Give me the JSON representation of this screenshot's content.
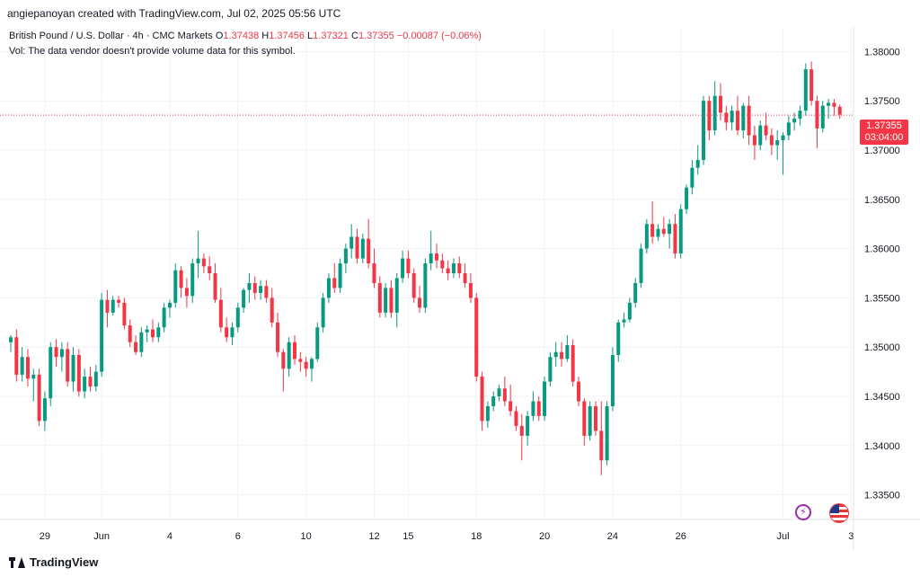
{
  "header": {
    "credit": "angiepanoyan created with TradingView.com, Jul 02, 2025 05:56 UTC",
    "symbol": "British Pound / U.S. Dollar · 4h · CMC Markets",
    "o_label": "O",
    "o_val": "1.37438",
    "h_label": "H",
    "h_val": "1.37456",
    "l_label": "L",
    "l_val": "1.37321",
    "c_label": "C",
    "c_val": "1.37355",
    "change": "−0.00087 (−0.06%)",
    "vol_note": "Vol: The data vendor doesn't provide volume data for this symbol."
  },
  "price_tag": {
    "price": "1.37355",
    "countdown": "03:04:00"
  },
  "footer": {
    "logo_text": "TradingView"
  },
  "icons": {
    "events": "lightning-icon",
    "flag": "us-flag-icon"
  },
  "colors": {
    "up": "#089981",
    "down": "#f23645",
    "grid": "#f0f3fa",
    "text": "#131722"
  },
  "chart_data": {
    "type": "candlestick",
    "ylim": [
      1.3325,
      1.3825
    ],
    "y_ticks": [
      "1.38000",
      "1.37500",
      "1.37000",
      "1.36500",
      "1.36000",
      "1.35500",
      "1.35000",
      "1.34500",
      "1.34000",
      "1.33500"
    ],
    "y_tick_values": [
      1.38,
      1.375,
      1.37,
      1.365,
      1.36,
      1.355,
      1.35,
      1.345,
      1.34,
      1.335
    ],
    "x_ticks": [
      {
        "label": "29",
        "i": 6
      },
      {
        "label": "Jun",
        "i": 16
      },
      {
        "label": "4",
        "i": 28
      },
      {
        "label": "6",
        "i": 40
      },
      {
        "label": "10",
        "i": 52
      },
      {
        "label": "12",
        "i": 64
      },
      {
        "label": "15",
        "i": 70
      },
      {
        "label": "18",
        "i": 82
      },
      {
        "label": "20",
        "i": 94
      },
      {
        "label": "24",
        "i": 106
      },
      {
        "label": "26",
        "i": 118
      },
      {
        "label": "Jul",
        "i": 136
      },
      {
        "label": "3",
        "i": 148
      }
    ],
    "last_price": 1.37355,
    "candles": [
      [
        1.3505,
        1.3512,
        1.3495,
        1.351
      ],
      [
        1.351,
        1.3518,
        1.3465,
        1.3472
      ],
      [
        1.3472,
        1.35,
        1.3465,
        1.349
      ],
      [
        1.349,
        1.3498,
        1.346,
        1.3468
      ],
      [
        1.3468,
        1.3478,
        1.3445,
        1.3472
      ],
      [
        1.3472,
        1.3478,
        1.342,
        1.3425
      ],
      [
        1.3425,
        1.3455,
        1.3415,
        1.3448
      ],
      [
        1.3448,
        1.3505,
        1.344,
        1.35
      ],
      [
        1.35,
        1.3508,
        1.348,
        1.349
      ],
      [
        1.349,
        1.3505,
        1.3475,
        1.3498
      ],
      [
        1.3498,
        1.3505,
        1.346,
        1.3465
      ],
      [
        1.3465,
        1.35,
        1.3455,
        1.3492
      ],
      [
        1.3492,
        1.3498,
        1.345,
        1.3455
      ],
      [
        1.3455,
        1.3478,
        1.3448,
        1.347
      ],
      [
        1.347,
        1.348,
        1.3455,
        1.346
      ],
      [
        1.346,
        1.3482,
        1.3455,
        1.3475
      ],
      [
        1.3475,
        1.3555,
        1.347,
        1.3548
      ],
      [
        1.3548,
        1.3558,
        1.352,
        1.3535
      ],
      [
        1.3535,
        1.3552,
        1.3532,
        1.3548
      ],
      [
        1.3548,
        1.3552,
        1.354,
        1.3545
      ],
      [
        1.3545,
        1.355,
        1.3518,
        1.3522
      ],
      [
        1.3522,
        1.3528,
        1.35,
        1.3505
      ],
      [
        1.3505,
        1.3512,
        1.3492,
        1.3495
      ],
      [
        1.3495,
        1.352,
        1.349,
        1.3515
      ],
      [
        1.3515,
        1.3522,
        1.3505,
        1.3518
      ],
      [
        1.3518,
        1.3528,
        1.3505,
        1.351
      ],
      [
        1.351,
        1.3525,
        1.3505,
        1.352
      ],
      [
        1.352,
        1.3545,
        1.3515,
        1.354
      ],
      [
        1.354,
        1.3548,
        1.353,
        1.3545
      ],
      [
        1.3545,
        1.3585,
        1.354,
        1.3578
      ],
      [
        1.3578,
        1.3582,
        1.355,
        1.356
      ],
      [
        1.356,
        1.357,
        1.354,
        1.3552
      ],
      [
        1.3552,
        1.359,
        1.3545,
        1.3585
      ],
      [
        1.3585,
        1.3618,
        1.357,
        1.359
      ],
      [
        1.359,
        1.3595,
        1.3575,
        1.3582
      ],
      [
        1.3582,
        1.3592,
        1.3568,
        1.3575
      ],
      [
        1.3575,
        1.3585,
        1.3545,
        1.3548
      ],
      [
        1.3548,
        1.356,
        1.3515,
        1.352
      ],
      [
        1.352,
        1.353,
        1.3505,
        1.351
      ],
      [
        1.351,
        1.3525,
        1.3502,
        1.352
      ],
      [
        1.352,
        1.3545,
        1.3515,
        1.354
      ],
      [
        1.354,
        1.356,
        1.3535,
        1.3558
      ],
      [
        1.3558,
        1.3575,
        1.3545,
        1.3565
      ],
      [
        1.3565,
        1.3572,
        1.3548,
        1.3555
      ],
      [
        1.3555,
        1.3568,
        1.3548,
        1.3562
      ],
      [
        1.3562,
        1.3568,
        1.3545,
        1.355
      ],
      [
        1.355,
        1.356,
        1.352,
        1.3525
      ],
      [
        1.3525,
        1.3535,
        1.349,
        1.3495
      ],
      [
        1.3495,
        1.3498,
        1.3455,
        1.3478
      ],
      [
        1.3478,
        1.351,
        1.347,
        1.3505
      ],
      [
        1.3505,
        1.3512,
        1.3482,
        1.3488
      ],
      [
        1.3488,
        1.3495,
        1.3475,
        1.3485
      ],
      [
        1.3485,
        1.349,
        1.347,
        1.3478
      ],
      [
        1.3478,
        1.349,
        1.3465,
        1.3488
      ],
      [
        1.3488,
        1.3525,
        1.3485,
        1.352
      ],
      [
        1.352,
        1.3555,
        1.3515,
        1.355
      ],
      [
        1.355,
        1.3575,
        1.3545,
        1.357
      ],
      [
        1.357,
        1.3585,
        1.3555,
        1.356
      ],
      [
        1.356,
        1.359,
        1.3555,
        1.3585
      ],
      [
        1.3585,
        1.3605,
        1.3575,
        1.36
      ],
      [
        1.36,
        1.3625,
        1.359,
        1.3612
      ],
      [
        1.3612,
        1.362,
        1.3585,
        1.359
      ],
      [
        1.359,
        1.3615,
        1.3585,
        1.361
      ],
      [
        1.361,
        1.363,
        1.358,
        1.3585
      ],
      [
        1.3585,
        1.36,
        1.356,
        1.3565
      ],
      [
        1.3565,
        1.3572,
        1.353,
        1.3535
      ],
      [
        1.3535,
        1.3565,
        1.353,
        1.356
      ],
      [
        1.356,
        1.3568,
        1.353,
        1.3535
      ],
      [
        1.3535,
        1.3575,
        1.352,
        1.357
      ],
      [
        1.357,
        1.3598,
        1.3565,
        1.359
      ],
      [
        1.359,
        1.3598,
        1.357,
        1.3575
      ],
      [
        1.3575,
        1.358,
        1.3545,
        1.355
      ],
      [
        1.355,
        1.3562,
        1.3535,
        1.354
      ],
      [
        1.354,
        1.359,
        1.3535,
        1.3585
      ],
      [
        1.3585,
        1.3618,
        1.3578,
        1.3595
      ],
      [
        1.3595,
        1.3605,
        1.358,
        1.3588
      ],
      [
        1.3588,
        1.3595,
        1.3575,
        1.358
      ],
      [
        1.358,
        1.3588,
        1.3568,
        1.3575
      ],
      [
        1.3575,
        1.359,
        1.357,
        1.3585
      ],
      [
        1.3585,
        1.3592,
        1.357,
        1.3575
      ],
      [
        1.3575,
        1.3585,
        1.356,
        1.3565
      ],
      [
        1.3565,
        1.3575,
        1.3545,
        1.355
      ],
      [
        1.355,
        1.3555,
        1.3465,
        1.347
      ],
      [
        1.347,
        1.3475,
        1.3415,
        1.3425
      ],
      [
        1.3425,
        1.3445,
        1.3418,
        1.344
      ],
      [
        1.344,
        1.3455,
        1.3435,
        1.345
      ],
      [
        1.345,
        1.3462,
        1.3445,
        1.3458
      ],
      [
        1.3458,
        1.347,
        1.344,
        1.3445
      ],
      [
        1.3445,
        1.3462,
        1.343,
        1.3435
      ],
      [
        1.3435,
        1.344,
        1.3415,
        1.342
      ],
      [
        1.342,
        1.3432,
        1.3385,
        1.341
      ],
      [
        1.341,
        1.3435,
        1.34,
        1.343
      ],
      [
        1.343,
        1.3455,
        1.3425,
        1.3445
      ],
      [
        1.3445,
        1.345,
        1.3425,
        1.343
      ],
      [
        1.343,
        1.347,
        1.3425,
        1.3465
      ],
      [
        1.3465,
        1.3495,
        1.346,
        1.349
      ],
      [
        1.349,
        1.3505,
        1.348,
        1.3495
      ],
      [
        1.3495,
        1.3505,
        1.348,
        1.3488
      ],
      [
        1.3488,
        1.3512,
        1.3485,
        1.3502
      ],
      [
        1.3502,
        1.3508,
        1.346,
        1.3465
      ],
      [
        1.3465,
        1.347,
        1.344,
        1.3445
      ],
      [
        1.3445,
        1.3448,
        1.34,
        1.341
      ],
      [
        1.341,
        1.3445,
        1.3405,
        1.344
      ],
      [
        1.344,
        1.3445,
        1.341,
        1.3415
      ],
      [
        1.3415,
        1.3445,
        1.337,
        1.3385
      ],
      [
        1.3385,
        1.3445,
        1.338,
        1.344
      ],
      [
        1.344,
        1.35,
        1.3435,
        1.3492
      ],
      [
        1.3492,
        1.3528,
        1.3485,
        1.3525
      ],
      [
        1.3525,
        1.3535,
        1.352,
        1.3528
      ],
      [
        1.3528,
        1.355,
        1.3525,
        1.3545
      ],
      [
        1.3545,
        1.357,
        1.354,
        1.3565
      ],
      [
        1.3565,
        1.3605,
        1.356,
        1.36
      ],
      [
        1.36,
        1.363,
        1.3595,
        1.3625
      ],
      [
        1.3625,
        1.3648,
        1.3605,
        1.3612
      ],
      [
        1.3612,
        1.3625,
        1.3608,
        1.362
      ],
      [
        1.362,
        1.3632,
        1.3612,
        1.3615
      ],
      [
        1.3615,
        1.363,
        1.36,
        1.3625
      ],
      [
        1.3625,
        1.3635,
        1.359,
        1.3595
      ],
      [
        1.3595,
        1.3645,
        1.359,
        1.364
      ],
      [
        1.364,
        1.3665,
        1.3635,
        1.3662
      ],
      [
        1.3662,
        1.369,
        1.3655,
        1.3682
      ],
      [
        1.3682,
        1.3705,
        1.3675,
        1.369
      ],
      [
        1.369,
        1.3755,
        1.3685,
        1.375
      ],
      [
        1.375,
        1.3755,
        1.371,
        1.372
      ],
      [
        1.372,
        1.377,
        1.3715,
        1.3755
      ],
      [
        1.3755,
        1.3768,
        1.373,
        1.3738
      ],
      [
        1.3738,
        1.3745,
        1.372,
        1.3728
      ],
      [
        1.3728,
        1.3745,
        1.372,
        1.374
      ],
      [
        1.374,
        1.3755,
        1.3715,
        1.372
      ],
      [
        1.372,
        1.3748,
        1.3712,
        1.3745
      ],
      [
        1.3745,
        1.3755,
        1.3705,
        1.3715
      ],
      [
        1.3715,
        1.3725,
        1.369,
        1.3705
      ],
      [
        1.3705,
        1.373,
        1.37,
        1.3725
      ],
      [
        1.3725,
        1.3738,
        1.371,
        1.3715
      ],
      [
        1.3715,
        1.3722,
        1.3695,
        1.3705
      ],
      [
        1.3705,
        1.372,
        1.369,
        1.371
      ],
      [
        1.371,
        1.3718,
        1.3675,
        1.3715
      ],
      [
        1.3715,
        1.3735,
        1.371,
        1.3728
      ],
      [
        1.3728,
        1.3738,
        1.372,
        1.3732
      ],
      [
        1.3732,
        1.3745,
        1.3725,
        1.374
      ],
      [
        1.374,
        1.3788,
        1.3735,
        1.3782
      ],
      [
        1.3782,
        1.379,
        1.3745,
        1.375
      ],
      [
        1.375,
        1.3755,
        1.3702,
        1.3722
      ],
      [
        1.3722,
        1.375,
        1.3718,
        1.3745
      ],
      [
        1.3745,
        1.3752,
        1.3732,
        1.3748
      ],
      [
        1.3748,
        1.3752,
        1.3735,
        1.3744
      ],
      [
        1.3744,
        1.3746,
        1.3732,
        1.3736
      ]
    ]
  }
}
